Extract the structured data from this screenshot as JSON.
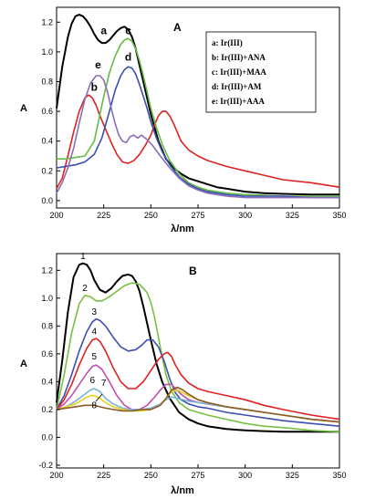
{
  "chart_data": [
    {
      "type": "line",
      "panel": "A",
      "xlabel": "λ/nm",
      "ylabel": "A",
      "xlim": [
        200,
        350
      ],
      "ylim": [
        -0.05,
        1.3
      ],
      "xticks": [
        200,
        225,
        250,
        275,
        300,
        325,
        350
      ],
      "yticks": [
        0.0,
        0.2,
        0.4,
        0.6,
        0.8,
        1.0,
        1.2
      ],
      "legend_position": "top-right",
      "legend": [
        "a: Ir(III)",
        "b: Ir(III)+ANA",
        "c: Ir(III)+MAA",
        "d: Ir(III)+AM",
        "e: Ir(III)+AAA"
      ],
      "series": [
        {
          "name": "a",
          "color": "#000000",
          "x": [
            200,
            203,
            206,
            208,
            210,
            212,
            214,
            216,
            218,
            220,
            222,
            224,
            226,
            228,
            230,
            232,
            234,
            236,
            238,
            240,
            242,
            244,
            246,
            248,
            250,
            254,
            258,
            262,
            266,
            270,
            275,
            280,
            285,
            290,
            300,
            310,
            320,
            335,
            350
          ],
          "y": [
            0.62,
            0.9,
            1.1,
            1.19,
            1.24,
            1.25,
            1.24,
            1.21,
            1.17,
            1.12,
            1.08,
            1.06,
            1.06,
            1.08,
            1.11,
            1.14,
            1.16,
            1.17,
            1.15,
            1.1,
            1.02,
            0.91,
            0.8,
            0.69,
            0.58,
            0.4,
            0.28,
            0.22,
            0.18,
            0.15,
            0.13,
            0.11,
            0.09,
            0.08,
            0.06,
            0.05,
            0.045,
            0.04,
            0.04
          ]
        },
        {
          "name": "b",
          "color": "#dd2222",
          "x": [
            200,
            203,
            206,
            209,
            212,
            215,
            217,
            219,
            221,
            223,
            226,
            229,
            232,
            235,
            238,
            241,
            244,
            247,
            250,
            252,
            254,
            256,
            258,
            260,
            262,
            264,
            266,
            270,
            275,
            280,
            290,
            300,
            310,
            320,
            335,
            350
          ],
          "y": [
            0.08,
            0.15,
            0.3,
            0.46,
            0.6,
            0.69,
            0.71,
            0.69,
            0.64,
            0.57,
            0.48,
            0.39,
            0.31,
            0.26,
            0.25,
            0.27,
            0.31,
            0.37,
            0.44,
            0.51,
            0.57,
            0.6,
            0.6,
            0.57,
            0.52,
            0.46,
            0.4,
            0.34,
            0.3,
            0.27,
            0.23,
            0.2,
            0.17,
            0.14,
            0.12,
            0.09
          ]
        },
        {
          "name": "c",
          "color": "#66bb44",
          "x": [
            200,
            205,
            210,
            215,
            220,
            225,
            228,
            231,
            234,
            236,
            238,
            240,
            242,
            244,
            246,
            248,
            250,
            253,
            256,
            260,
            265,
            270,
            275,
            280,
            290,
            300,
            310,
            320,
            335,
            350
          ],
          "y": [
            0.28,
            0.28,
            0.29,
            0.3,
            0.4,
            0.7,
            0.86,
            0.97,
            1.05,
            1.08,
            1.09,
            1.07,
            1.02,
            0.94,
            0.84,
            0.73,
            0.62,
            0.49,
            0.38,
            0.27,
            0.18,
            0.12,
            0.09,
            0.07,
            0.05,
            0.04,
            0.035,
            0.03,
            0.03,
            0.03
          ]
        },
        {
          "name": "d",
          "color": "#3a50b0",
          "x": [
            200,
            205,
            210,
            215,
            220,
            224,
            228,
            231,
            234,
            236,
            238,
            240,
            242,
            244,
            246,
            248,
            250,
            253,
            256,
            260,
            265,
            270,
            275,
            280,
            290,
            300,
            310,
            320,
            335,
            350
          ],
          "y": [
            0.22,
            0.23,
            0.24,
            0.26,
            0.31,
            0.42,
            0.6,
            0.74,
            0.84,
            0.88,
            0.9,
            0.89,
            0.85,
            0.78,
            0.7,
            0.62,
            0.53,
            0.42,
            0.33,
            0.24,
            0.16,
            0.11,
            0.08,
            0.06,
            0.04,
            0.03,
            0.03,
            0.03,
            0.02,
            0.02
          ]
        },
        {
          "name": "e",
          "color": "#8a6fb5",
          "x": [
            200,
            203,
            206,
            209,
            212,
            215,
            218,
            221,
            223,
            225,
            227,
            229,
            231,
            233,
            235,
            237,
            239,
            241,
            243,
            245,
            248,
            251,
            255,
            260,
            265,
            270,
            275,
            280,
            290,
            300,
            310,
            320,
            335,
            350
          ],
          "y": [
            0.05,
            0.12,
            0.22,
            0.35,
            0.52,
            0.68,
            0.79,
            0.84,
            0.84,
            0.81,
            0.73,
            0.62,
            0.52,
            0.44,
            0.4,
            0.39,
            0.43,
            0.44,
            0.42,
            0.44,
            0.41,
            0.37,
            0.3,
            0.22,
            0.15,
            0.1,
            0.07,
            0.05,
            0.03,
            0.02,
            0.02,
            0.02,
            0.02,
            0.02
          ]
        }
      ],
      "curve_labels": [
        {
          "text": "a",
          "x": 225,
          "y": 1.12
        },
        {
          "text": "b",
          "x": 220,
          "y": 0.74
        },
        {
          "text": "c",
          "x": 238,
          "y": 1.12
        },
        {
          "text": "d",
          "x": 238,
          "y": 0.94
        },
        {
          "text": "e",
          "x": 222,
          "y": 0.89
        }
      ]
    },
    {
      "type": "line",
      "panel": "B",
      "xlabel": "λ/nm",
      "ylabel": "A",
      "xlim": [
        200,
        350
      ],
      "ylim": [
        -0.22,
        1.32
      ],
      "xticks": [
        200,
        225,
        250,
        275,
        300,
        325,
        350
      ],
      "yticks": [
        -0.2,
        0.0,
        0.2,
        0.4,
        0.6,
        0.8,
        1.0,
        1.2
      ],
      "series": [
        {
          "name": "1",
          "color": "#000000",
          "x": [
            200,
            203,
            206,
            209,
            212,
            214,
            216,
            218,
            220,
            223,
            226,
            229,
            232,
            235,
            238,
            240,
            242,
            244,
            246,
            248,
            250,
            253,
            256,
            260,
            265,
            270,
            275,
            280,
            290,
            300,
            310,
            320,
            335,
            350
          ],
          "y": [
            0.25,
            0.55,
            0.9,
            1.15,
            1.24,
            1.25,
            1.24,
            1.2,
            1.13,
            1.06,
            1.04,
            1.07,
            1.12,
            1.16,
            1.17,
            1.16,
            1.12,
            1.05,
            0.94,
            0.82,
            0.7,
            0.53,
            0.4,
            0.28,
            0.18,
            0.13,
            0.1,
            0.08,
            0.06,
            0.05,
            0.045,
            0.04,
            0.04,
            0.04
          ]
        },
        {
          "name": "2",
          "color": "#77c142",
          "x": [
            200,
            204,
            208,
            212,
            215,
            218,
            221,
            224,
            228,
            232,
            236,
            240,
            244,
            248,
            250,
            252,
            254,
            256,
            258,
            261,
            265,
            270,
            275,
            280,
            290,
            300,
            310,
            320,
            335,
            350
          ],
          "y": [
            0.2,
            0.45,
            0.75,
            0.96,
            1.02,
            1.01,
            0.98,
            0.98,
            1.01,
            1.05,
            1.09,
            1.11,
            1.1,
            1.04,
            0.97,
            0.86,
            0.72,
            0.58,
            0.45,
            0.33,
            0.25,
            0.2,
            0.18,
            0.16,
            0.13,
            0.1,
            0.08,
            0.07,
            0.05,
            0.04
          ]
        },
        {
          "name": "3",
          "color": "#3e4fb0",
          "x": [
            200,
            204,
            208,
            212,
            216,
            219,
            221,
            223,
            226,
            230,
            234,
            238,
            242,
            245,
            248,
            251,
            254,
            257,
            260,
            263,
            266,
            270,
            275,
            280,
            290,
            300,
            310,
            320,
            335,
            350
          ],
          "y": [
            0.2,
            0.3,
            0.45,
            0.62,
            0.76,
            0.83,
            0.85,
            0.84,
            0.8,
            0.72,
            0.65,
            0.62,
            0.63,
            0.66,
            0.7,
            0.7,
            0.65,
            0.55,
            0.42,
            0.32,
            0.27,
            0.24,
            0.22,
            0.21,
            0.18,
            0.16,
            0.14,
            0.12,
            0.1,
            0.08
          ]
        },
        {
          "name": "4",
          "color": "#e02020",
          "x": [
            200,
            204,
            208,
            212,
            216,
            219,
            221,
            223,
            226,
            230,
            234,
            238,
            242,
            246,
            250,
            254,
            257,
            259,
            261,
            263,
            266,
            270,
            275,
            280,
            290,
            300,
            310,
            320,
            335,
            350
          ],
          "y": [
            0.2,
            0.27,
            0.38,
            0.52,
            0.64,
            0.7,
            0.71,
            0.69,
            0.62,
            0.5,
            0.4,
            0.35,
            0.35,
            0.4,
            0.48,
            0.56,
            0.6,
            0.61,
            0.58,
            0.52,
            0.45,
            0.39,
            0.35,
            0.33,
            0.3,
            0.27,
            0.23,
            0.2,
            0.16,
            0.13
          ]
        },
        {
          "name": "5",
          "color": "#c050b0",
          "x": [
            200,
            204,
            208,
            212,
            216,
            219,
            221,
            224,
            228,
            232,
            236,
            240,
            244,
            248,
            252,
            255,
            258,
            261,
            263,
            266,
            270,
            275,
            280,
            290,
            300,
            310,
            320,
            335,
            350
          ],
          "y": [
            0.2,
            0.24,
            0.3,
            0.38,
            0.46,
            0.51,
            0.52,
            0.49,
            0.4,
            0.3,
            0.23,
            0.2,
            0.2,
            0.23,
            0.29,
            0.34,
            0.38,
            0.38,
            0.35,
            0.31,
            0.27,
            0.25,
            0.24,
            0.22,
            0.2,
            0.18,
            0.16,
            0.13,
            0.11
          ]
        },
        {
          "name": "6",
          "color": "#7ab3d8",
          "x": [
            200,
            205,
            210,
            215,
            218,
            220,
            223,
            226,
            230,
            235,
            240,
            245,
            250,
            255,
            258,
            261,
            264,
            267,
            270,
            275,
            280,
            290,
            300,
            310,
            320,
            335,
            350
          ],
          "y": [
            0.2,
            0.22,
            0.26,
            0.31,
            0.34,
            0.35,
            0.33,
            0.28,
            0.24,
            0.21,
            0.2,
            0.2,
            0.21,
            0.24,
            0.27,
            0.29,
            0.28,
            0.27,
            0.26,
            0.25,
            0.24,
            0.22,
            0.2,
            0.18,
            0.16,
            0.13,
            0.11
          ]
        },
        {
          "name": "7",
          "color": "#e8d020",
          "x": [
            200,
            205,
            210,
            215,
            218,
            220,
            223,
            226,
            230,
            235,
            240,
            245,
            250,
            255,
            258,
            261,
            264,
            267,
            270,
            275,
            280,
            290,
            300,
            310,
            320,
            335,
            350
          ],
          "y": [
            0.2,
            0.22,
            0.24,
            0.28,
            0.3,
            0.3,
            0.28,
            0.25,
            0.22,
            0.2,
            0.19,
            0.19,
            0.2,
            0.23,
            0.28,
            0.33,
            0.34,
            0.32,
            0.3,
            0.27,
            0.25,
            0.22,
            0.2,
            0.18,
            0.16,
            0.13,
            0.11
          ]
        },
        {
          "name": "8",
          "color": "#8b5a2b",
          "x": [
            200,
            205,
            210,
            215,
            218,
            220,
            223,
            226,
            230,
            235,
            240,
            245,
            250,
            255,
            258,
            261,
            264,
            267,
            270,
            275,
            280,
            290,
            300,
            310,
            320,
            335,
            350
          ],
          "y": [
            0.2,
            0.21,
            0.22,
            0.23,
            0.23,
            0.23,
            0.22,
            0.21,
            0.2,
            0.19,
            0.19,
            0.2,
            0.2,
            0.23,
            0.28,
            0.34,
            0.36,
            0.34,
            0.31,
            0.27,
            0.25,
            0.22,
            0.2,
            0.18,
            0.16,
            0.13,
            0.11
          ]
        }
      ],
      "curve_labels": [
        {
          "text": "1",
          "x": 214,
          "y": 1.28
        },
        {
          "text": "2",
          "x": 215,
          "y": 1.05
        },
        {
          "text": "3",
          "x": 220,
          "y": 0.88
        },
        {
          "text": "4",
          "x": 220,
          "y": 0.74
        },
        {
          "text": "5",
          "x": 220,
          "y": 0.56
        },
        {
          "text": "6",
          "x": 219,
          "y": 0.39
        },
        {
          "text": "7",
          "x": 225,
          "y": 0.37
        },
        {
          "text": "8",
          "x": 220,
          "y": 0.21
        }
      ]
    }
  ]
}
